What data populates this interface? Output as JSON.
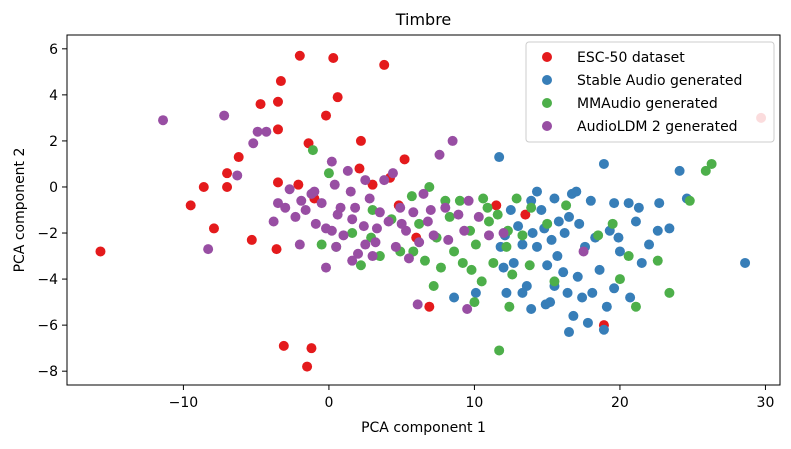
{
  "chart_data": {
    "type": "scatter",
    "title": "Timbre",
    "xlabel": "PCA component 1",
    "ylabel": "PCA component 2",
    "xlim": [
      -18,
      31
    ],
    "ylim": [
      -8.6,
      6.6
    ],
    "xticks": [
      -10,
      0,
      10,
      20,
      30
    ],
    "yticks": [
      -8,
      -6,
      -4,
      -2,
      0,
      2,
      4,
      6
    ],
    "grid": false,
    "legend_position": "top-right",
    "series": [
      {
        "name": "ESC-50 dataset",
        "color": "#e41a1c",
        "points": [
          [
            -15.7,
            -2.8
          ],
          [
            -9.5,
            -0.8
          ],
          [
            -8.6,
            0.0
          ],
          [
            -7.9,
            -1.8
          ],
          [
            -7.0,
            0.6
          ],
          [
            -7.0,
            0.0
          ],
          [
            -6.2,
            1.3
          ],
          [
            -5.3,
            -2.3
          ],
          [
            -4.7,
            3.6
          ],
          [
            -3.5,
            3.7
          ],
          [
            -3.3,
            4.6
          ],
          [
            -3.6,
            -2.7
          ],
          [
            -3.1,
            -6.9
          ],
          [
            -3.5,
            0.2
          ],
          [
            -3.5,
            2.5
          ],
          [
            -2.0,
            5.7
          ],
          [
            -2.1,
            0.1
          ],
          [
            -1.4,
            1.9
          ],
          [
            -1.5,
            -7.8
          ],
          [
            -1.2,
            -7.0
          ],
          [
            -1.0,
            -0.5
          ],
          [
            0.3,
            5.6
          ],
          [
            0.6,
            3.9
          ],
          [
            -0.2,
            3.1
          ],
          [
            2.1,
            0.8
          ],
          [
            2.2,
            2.0
          ],
          [
            3.8,
            5.3
          ],
          [
            3.0,
            0.1
          ],
          [
            4.2,
            0.4
          ],
          [
            5.2,
            1.2
          ],
          [
            4.8,
            -0.8
          ],
          [
            6.0,
            -2.2
          ],
          [
            6.9,
            -5.2
          ],
          [
            11.5,
            -0.8
          ],
          [
            13.5,
            -1.2
          ],
          [
            18.9,
            -6.0
          ],
          [
            29.7,
            3.0
          ]
        ]
      },
      {
        "name": "Stable Audio generated",
        "color": "#377eb8",
        "points": [
          [
            11.7,
            1.3
          ],
          [
            12.5,
            -1.0
          ],
          [
            12.1,
            -2.1
          ],
          [
            11.8,
            -2.6
          ],
          [
            13.0,
            -1.7
          ],
          [
            13.3,
            -2.5
          ],
          [
            12.7,
            -3.3
          ],
          [
            13.3,
            -4.6
          ],
          [
            12.2,
            -4.6
          ],
          [
            13.6,
            -4.3
          ],
          [
            14.3,
            -0.2
          ],
          [
            14.6,
            -1.0
          ],
          [
            14.8,
            -1.8
          ],
          [
            14.3,
            -2.6
          ],
          [
            15.3,
            -2.3
          ],
          [
            15.0,
            -3.4
          ],
          [
            15.5,
            -4.3
          ],
          [
            14.9,
            -5.1
          ],
          [
            13.9,
            -5.3
          ],
          [
            15.5,
            -0.5
          ],
          [
            15.8,
            -1.5
          ],
          [
            16.2,
            -2.0
          ],
          [
            15.7,
            -3.0
          ],
          [
            16.1,
            -3.7
          ],
          [
            16.4,
            -4.6
          ],
          [
            15.2,
            -5.0
          ],
          [
            16.7,
            -0.3
          ],
          [
            17.2,
            -1.6
          ],
          [
            17.6,
            -2.6
          ],
          [
            17.1,
            -3.9
          ],
          [
            17.4,
            -4.8
          ],
          [
            16.8,
            -5.6
          ],
          [
            16.5,
            -6.3
          ],
          [
            18.0,
            -0.6
          ],
          [
            18.3,
            -2.2
          ],
          [
            18.6,
            -3.6
          ],
          [
            18.1,
            -4.6
          ],
          [
            18.9,
            -6.2
          ],
          [
            18.9,
            1.0
          ],
          [
            19.6,
            -0.7
          ],
          [
            19.3,
            -1.9
          ],
          [
            20.0,
            -2.8
          ],
          [
            19.6,
            -4.4
          ],
          [
            19.1,
            -5.2
          ],
          [
            20.6,
            -0.7
          ],
          [
            21.1,
            -1.5
          ],
          [
            21.5,
            -3.3
          ],
          [
            20.7,
            -4.8
          ],
          [
            22.0,
            -2.5
          ],
          [
            22.7,
            -0.7
          ],
          [
            23.4,
            -1.8
          ],
          [
            24.1,
            0.7
          ],
          [
            24.6,
            -0.5
          ],
          [
            28.6,
            -3.3
          ],
          [
            17.8,
            -5.9
          ],
          [
            12.0,
            -3.5
          ],
          [
            8.6,
            -4.8
          ],
          [
            10.1,
            -4.6
          ],
          [
            13.9,
            -0.6
          ],
          [
            16.5,
            -1.3
          ],
          [
            19.9,
            -2.2
          ],
          [
            21.3,
            -0.9
          ],
          [
            22.6,
            -1.9
          ],
          [
            14.0,
            -2.0
          ],
          [
            17.0,
            -0.2
          ]
        ]
      },
      {
        "name": "MMAudio generated",
        "color": "#4daf4a",
        "points": [
          [
            -1.1,
            1.6
          ],
          [
            0.0,
            0.6
          ],
          [
            -0.5,
            -2.5
          ],
          [
            0.5,
            -2.6
          ],
          [
            1.6,
            -2.0
          ],
          [
            2.2,
            -3.4
          ],
          [
            2.9,
            -2.2
          ],
          [
            3.5,
            -3.0
          ],
          [
            4.3,
            -1.4
          ],
          [
            4.9,
            -2.8
          ],
          [
            5.7,
            -0.4
          ],
          [
            6.2,
            -1.6
          ],
          [
            6.6,
            -3.2
          ],
          [
            6.9,
            0.0
          ],
          [
            7.4,
            -2.2
          ],
          [
            7.7,
            -3.5
          ],
          [
            8.3,
            -1.3
          ],
          [
            8.6,
            -2.8
          ],
          [
            9.0,
            -0.6
          ],
          [
            9.2,
            -3.3
          ],
          [
            9.7,
            -1.9
          ],
          [
            10.1,
            -2.5
          ],
          [
            10.5,
            -4.1
          ],
          [
            10.9,
            -0.9
          ],
          [
            11.3,
            -3.3
          ],
          [
            11.6,
            -1.2
          ],
          [
            11.7,
            -7.1
          ],
          [
            12.2,
            -2.6
          ],
          [
            12.4,
            -5.2
          ],
          [
            12.6,
            -3.8
          ],
          [
            12.9,
            -0.5
          ],
          [
            13.3,
            -2.1
          ],
          [
            13.8,
            -3.4
          ],
          [
            15.0,
            -1.6
          ],
          [
            15.5,
            -4.1
          ],
          [
            16.3,
            -0.8
          ],
          [
            18.5,
            -2.1
          ],
          [
            19.5,
            -1.6
          ],
          [
            20.0,
            -4.0
          ],
          [
            20.6,
            -3.0
          ],
          [
            21.1,
            -5.2
          ],
          [
            22.6,
            -3.2
          ],
          [
            23.4,
            -4.6
          ],
          [
            24.8,
            -0.6
          ],
          [
            25.9,
            0.7
          ],
          [
            10.0,
            -5.0
          ],
          [
            9.8,
            -3.6
          ],
          [
            7.2,
            -4.3
          ],
          [
            5.8,
            -2.8
          ],
          [
            3.0,
            -1.0
          ],
          [
            11.0,
            -1.5
          ],
          [
            13.9,
            -0.9
          ],
          [
            8.0,
            -0.6
          ],
          [
            10.6,
            -0.5
          ],
          [
            26.3,
            1.0
          ],
          [
            12.3,
            -1.9
          ]
        ]
      },
      {
        "name": "AudioLDM 2 generated",
        "color": "#984ea3",
        "points": [
          [
            -11.4,
            2.9
          ],
          [
            -7.2,
            3.1
          ],
          [
            -4.9,
            2.4
          ],
          [
            -4.3,
            2.4
          ],
          [
            -5.2,
            1.9
          ],
          [
            -6.3,
            0.5
          ],
          [
            -8.3,
            -2.7
          ],
          [
            -3.5,
            -0.7
          ],
          [
            -3.0,
            -0.9
          ],
          [
            -2.3,
            -1.3
          ],
          [
            -2.0,
            -2.5
          ],
          [
            -1.9,
            -0.6
          ],
          [
            -1.6,
            -1.0
          ],
          [
            -1.2,
            -0.3
          ],
          [
            -0.9,
            -1.6
          ],
          [
            -0.5,
            -0.7
          ],
          [
            -0.2,
            -1.8
          ],
          [
            0.2,
            1.1
          ],
          [
            0.4,
            0.1
          ],
          [
            0.6,
            -1.2
          ],
          [
            1.0,
            -2.1
          ],
          [
            1.3,
            0.7
          ],
          [
            1.5,
            -0.2
          ],
          [
            1.8,
            -0.9
          ],
          [
            2.0,
            -2.9
          ],
          [
            2.4,
            -1.7
          ],
          [
            2.8,
            -0.5
          ],
          [
            3.2,
            -2.4
          ],
          [
            3.5,
            -1.1
          ],
          [
            3.8,
            0.3
          ],
          [
            4.1,
            -1.5
          ],
          [
            4.6,
            -2.6
          ],
          [
            4.9,
            -0.9
          ],
          [
            5.3,
            -1.9
          ],
          [
            5.8,
            -1.1
          ],
          [
            6.2,
            -2.4
          ],
          [
            6.5,
            -0.3
          ],
          [
            6.8,
            -1.5
          ],
          [
            7.2,
            -2.1
          ],
          [
            7.6,
            1.4
          ],
          [
            8.0,
            -0.9
          ],
          [
            8.5,
            2.0
          ],
          [
            8.9,
            -1.2
          ],
          [
            9.3,
            -1.9
          ],
          [
            9.6,
            -0.6
          ],
          [
            10.3,
            -1.3
          ],
          [
            11.0,
            -2.1
          ],
          [
            12.0,
            -2.0
          ],
          [
            -0.2,
            -3.5
          ],
          [
            0.5,
            -2.6
          ],
          [
            3.0,
            -3.0
          ],
          [
            6.1,
            -5.1
          ],
          [
            9.5,
            -5.3
          ],
          [
            17.5,
            -2.8
          ],
          [
            1.6,
            -3.2
          ],
          [
            4.4,
            0.6
          ],
          [
            -3.8,
            -1.5
          ],
          [
            2.5,
            0.3
          ],
          [
            -2.7,
            -0.1
          ],
          [
            5.0,
            -1.6
          ],
          [
            3.3,
            -1.8
          ],
          [
            0.2,
            -1.9
          ],
          [
            -1.0,
            -0.2
          ],
          [
            0.8,
            -0.9
          ],
          [
            7.0,
            -1.0
          ],
          [
            1.6,
            -1.4
          ],
          [
            2.5,
            -2.5
          ],
          [
            5.5,
            -3.1
          ],
          [
            8.2,
            -2.3
          ]
        ]
      }
    ]
  }
}
